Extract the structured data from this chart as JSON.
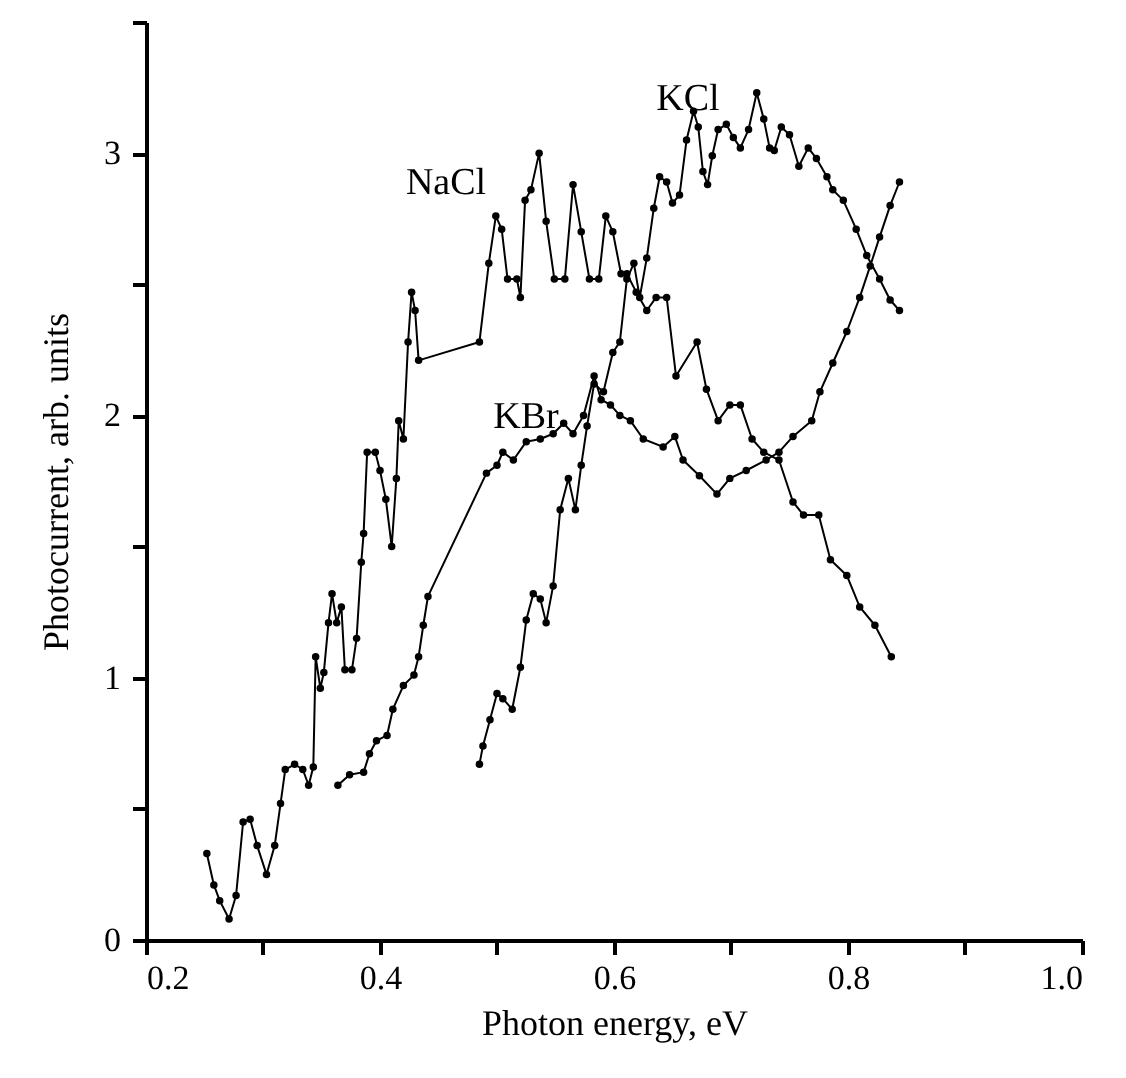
{
  "chart_data": {
    "type": "line",
    "xlabel": "Photon energy, eV",
    "ylabel": "Photocurrent, arb. units",
    "xlim": [
      0.2,
      1.0
    ],
    "ylim": [
      0,
      3.5
    ],
    "xticks": [
      0.2,
      {
        "value": 0.3,
        "label": null
      },
      0.4,
      {
        "value": 0.5,
        "label": null
      },
      0.6,
      {
        "value": 0.7,
        "label": null
      },
      0.8,
      {
        "value": 0.9,
        "label": null
      },
      {
        "value": 1.0,
        "label": "1.0"
      }
    ],
    "yticks": [
      0,
      {
        "value": 0.5,
        "label": null
      },
      1,
      {
        "value": 1.5,
        "label": null
      },
      2,
      {
        "value": 2.5,
        "label": null
      },
      3,
      {
        "value": 3.5,
        "label": null
      }
    ],
    "grid": false,
    "legend": false,
    "marker": "circle",
    "line_style": "solid",
    "series": [
      {
        "name": "NaCl",
        "color": "#000000",
        "x": [
          0.252,
          0.258,
          0.263,
          0.271,
          0.277,
          0.283,
          0.289,
          0.295,
          0.303,
          0.31,
          0.315,
          0.319,
          0.327,
          0.334,
          0.339,
          0.343,
          0.345,
          0.349,
          0.352,
          0.356,
          0.359,
          0.363,
          0.367,
          0.37,
          0.376,
          0.38,
          0.384,
          0.386,
          0.389,
          0.396,
          0.4,
          0.405,
          0.41,
          0.414,
          0.416,
          0.42,
          0.424,
          0.427,
          0.43,
          0.433,
          0.485,
          0.493,
          0.499,
          0.504,
          0.509,
          0.517,
          0.52,
          0.524,
          0.529,
          0.536,
          0.542,
          0.549,
          0.558,
          0.565,
          0.572,
          0.579,
          0.587,
          0.593,
          0.599,
          0.606,
          0.611,
          0.619,
          0.628,
          0.636,
          0.645,
          0.653,
          0.671,
          0.679,
          0.689,
          0.699,
          0.708,
          0.718,
          0.728,
          0.741,
          0.753,
          0.762,
          0.775,
          0.785,
          0.799,
          0.81,
          0.823,
          0.837
        ],
        "values": [
          0.33,
          0.21,
          0.15,
          0.08,
          0.17,
          0.45,
          0.46,
          0.36,
          0.25,
          0.36,
          0.52,
          0.65,
          0.67,
          0.65,
          0.59,
          0.66,
          1.08,
          0.96,
          1.02,
          1.21,
          1.32,
          1.21,
          1.27,
          1.03,
          1.03,
          1.15,
          1.44,
          1.55,
          1.86,
          1.86,
          1.79,
          1.68,
          1.5,
          1.76,
          1.98,
          1.91,
          2.28,
          2.47,
          2.4,
          2.21,
          2.28,
          2.58,
          2.76,
          2.71,
          2.52,
          2.52,
          2.45,
          2.82,
          2.86,
          3.0,
          2.74,
          2.52,
          2.52,
          2.88,
          2.7,
          2.52,
          2.52,
          2.76,
          2.7,
          2.54,
          2.54,
          2.47,
          2.4,
          2.45,
          2.45,
          2.15,
          2.28,
          2.1,
          1.98,
          2.04,
          2.04,
          1.91,
          1.86,
          1.83,
          1.67,
          1.62,
          1.62,
          1.45,
          1.39,
          1.27,
          1.2,
          1.08
        ]
      },
      {
        "name": "KBr",
        "color": "#000000",
        "x": [
          0.364,
          0.374,
          0.386,
          0.391,
          0.397,
          0.406,
          0.411,
          0.42,
          0.429,
          0.433,
          0.437,
          0.441,
          0.491,
          0.5,
          0.505,
          0.514,
          0.525,
          0.537,
          0.548,
          0.557,
          0.565,
          0.574,
          0.583,
          0.589,
          0.597,
          0.605,
          0.614,
          0.625,
          0.642,
          0.652,
          0.659,
          0.673,
          0.688,
          0.699,
          0.713,
          0.73,
          0.741,
          0.753,
          0.769,
          0.776,
          0.787,
          0.799,
          0.81,
          0.819,
          0.827,
          0.836,
          0.844
        ],
        "values": [
          0.59,
          0.63,
          0.64,
          0.71,
          0.76,
          0.78,
          0.88,
          0.97,
          1.01,
          1.08,
          1.2,
          1.31,
          1.78,
          1.81,
          1.86,
          1.83,
          1.9,
          1.91,
          1.93,
          1.97,
          1.93,
          2.0,
          2.15,
          2.06,
          2.04,
          2.0,
          1.98,
          1.91,
          1.88,
          1.92,
          1.83,
          1.77,
          1.7,
          1.76,
          1.79,
          1.83,
          1.86,
          1.92,
          1.98,
          2.09,
          2.2,
          2.32,
          2.45,
          2.57,
          2.68,
          2.8,
          2.89
        ]
      },
      {
        "name": "KCl",
        "color": "#000000",
        "x": [
          0.485,
          0.488,
          0.494,
          0.5,
          0.505,
          0.513,
          0.52,
          0.525,
          0.531,
          0.537,
          0.542,
          0.548,
          0.554,
          0.561,
          0.567,
          0.572,
          0.577,
          0.583,
          0.591,
          0.599,
          0.605,
          0.611,
          0.617,
          0.622,
          0.628,
          0.634,
          0.639,
          0.645,
          0.65,
          0.656,
          0.662,
          0.668,
          0.672,
          0.676,
          0.68,
          0.684,
          0.689,
          0.696,
          0.702,
          0.708,
          0.715,
          0.722,
          0.728,
          0.733,
          0.737,
          0.743,
          0.75,
          0.758,
          0.766,
          0.773,
          0.782,
          0.787,
          0.796,
          0.807,
          0.816,
          0.827,
          0.836,
          0.844
        ],
        "values": [
          0.67,
          0.74,
          0.84,
          0.94,
          0.92,
          0.88,
          1.04,
          1.22,
          1.32,
          1.3,
          1.21,
          1.35,
          1.64,
          1.76,
          1.64,
          1.81,
          1.96,
          2.12,
          2.09,
          2.24,
          2.28,
          2.52,
          2.58,
          2.45,
          2.6,
          2.79,
          2.91,
          2.89,
          2.81,
          2.84,
          3.05,
          3.16,
          3.1,
          2.93,
          2.88,
          2.99,
          3.09,
          3.11,
          3.06,
          3.02,
          3.09,
          3.23,
          3.13,
          3.02,
          3.01,
          3.1,
          3.07,
          2.95,
          3.02,
          2.98,
          2.91,
          2.86,
          2.82,
          2.71,
          2.61,
          2.52,
          2.44,
          2.4
        ]
      }
    ]
  }
}
